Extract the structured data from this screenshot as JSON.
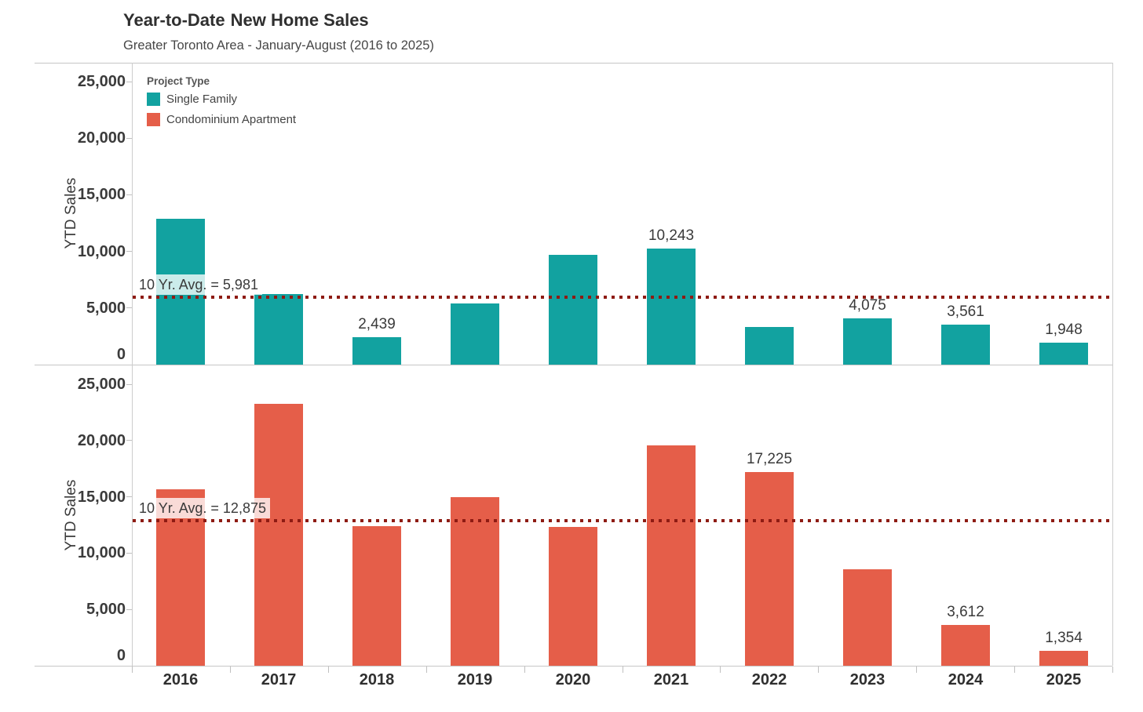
{
  "title": {
    "emphasis": "Year-to-Date",
    "rest": "New Home Sales"
  },
  "subtitle": "Greater Toronto Area - January-August (2016 to 2025)",
  "legend": {
    "title": "Project Type",
    "items": [
      {
        "label": "Single Family",
        "color": "#12a2a0"
      },
      {
        "label": "Condominium Apartment",
        "color": "#e55e49"
      }
    ]
  },
  "x_axis": {
    "categories": [
      "2016",
      "2017",
      "2018",
      "2019",
      "2020",
      "2021",
      "2022",
      "2023",
      "2024",
      "2025"
    ]
  },
  "chart_data": [
    {
      "type": "bar",
      "series_name": "Single Family",
      "color": "#12a2a0",
      "categories": [
        "2016",
        "2017",
        "2018",
        "2019",
        "2020",
        "2021",
        "2022",
        "2023",
        "2024",
        "2025"
      ],
      "values": [
        12900,
        6200,
        2439,
        5400,
        9700,
        10243,
        3350,
        4075,
        3561,
        1948
      ],
      "bar_labels": [
        null,
        null,
        "2,439",
        null,
        null,
        "10,243",
        null,
        "4,075",
        "3,561",
        "1,948"
      ],
      "ref_line": {
        "value": 5981,
        "label": "10 Yr. Avg. = 5,981",
        "color": "#8e1b13",
        "style": "dotted"
      },
      "xlabel": "",
      "ylabel": "YTD Sales",
      "ylim": [
        0,
        25000
      ],
      "yticks": [
        0,
        5000,
        10000,
        15000,
        20000,
        25000
      ],
      "ytick_labels": [
        "0",
        "5,000",
        "10,000",
        "15,000",
        "20,000",
        "25,000"
      ],
      "grid": false,
      "legend_position": "top-left-inside"
    },
    {
      "type": "bar",
      "series_name": "Condominium Apartment",
      "color": "#e55e49",
      "categories": [
        "2016",
        "2017",
        "2018",
        "2019",
        "2020",
        "2021",
        "2022",
        "2023",
        "2024",
        "2025"
      ],
      "values": [
        15650,
        23250,
        12400,
        15000,
        12350,
        19600,
        17225,
        8550,
        3612,
        1354
      ],
      "bar_labels": [
        null,
        null,
        null,
        null,
        null,
        null,
        "17,225",
        null,
        "3,612",
        "1,354"
      ],
      "ref_line": {
        "value": 12875,
        "label": "10 Yr. Avg. = 12,875",
        "color": "#8e1b13",
        "style": "dotted"
      },
      "xlabel": "",
      "ylabel": "YTD Sales",
      "ylim": [
        0,
        25000
      ],
      "yticks": [
        0,
        5000,
        10000,
        15000,
        20000,
        25000
      ],
      "ytick_labels": [
        "0",
        "5,000",
        "10,000",
        "15,000",
        "20,000",
        "25,000"
      ],
      "grid": false,
      "legend_position": "none"
    }
  ]
}
